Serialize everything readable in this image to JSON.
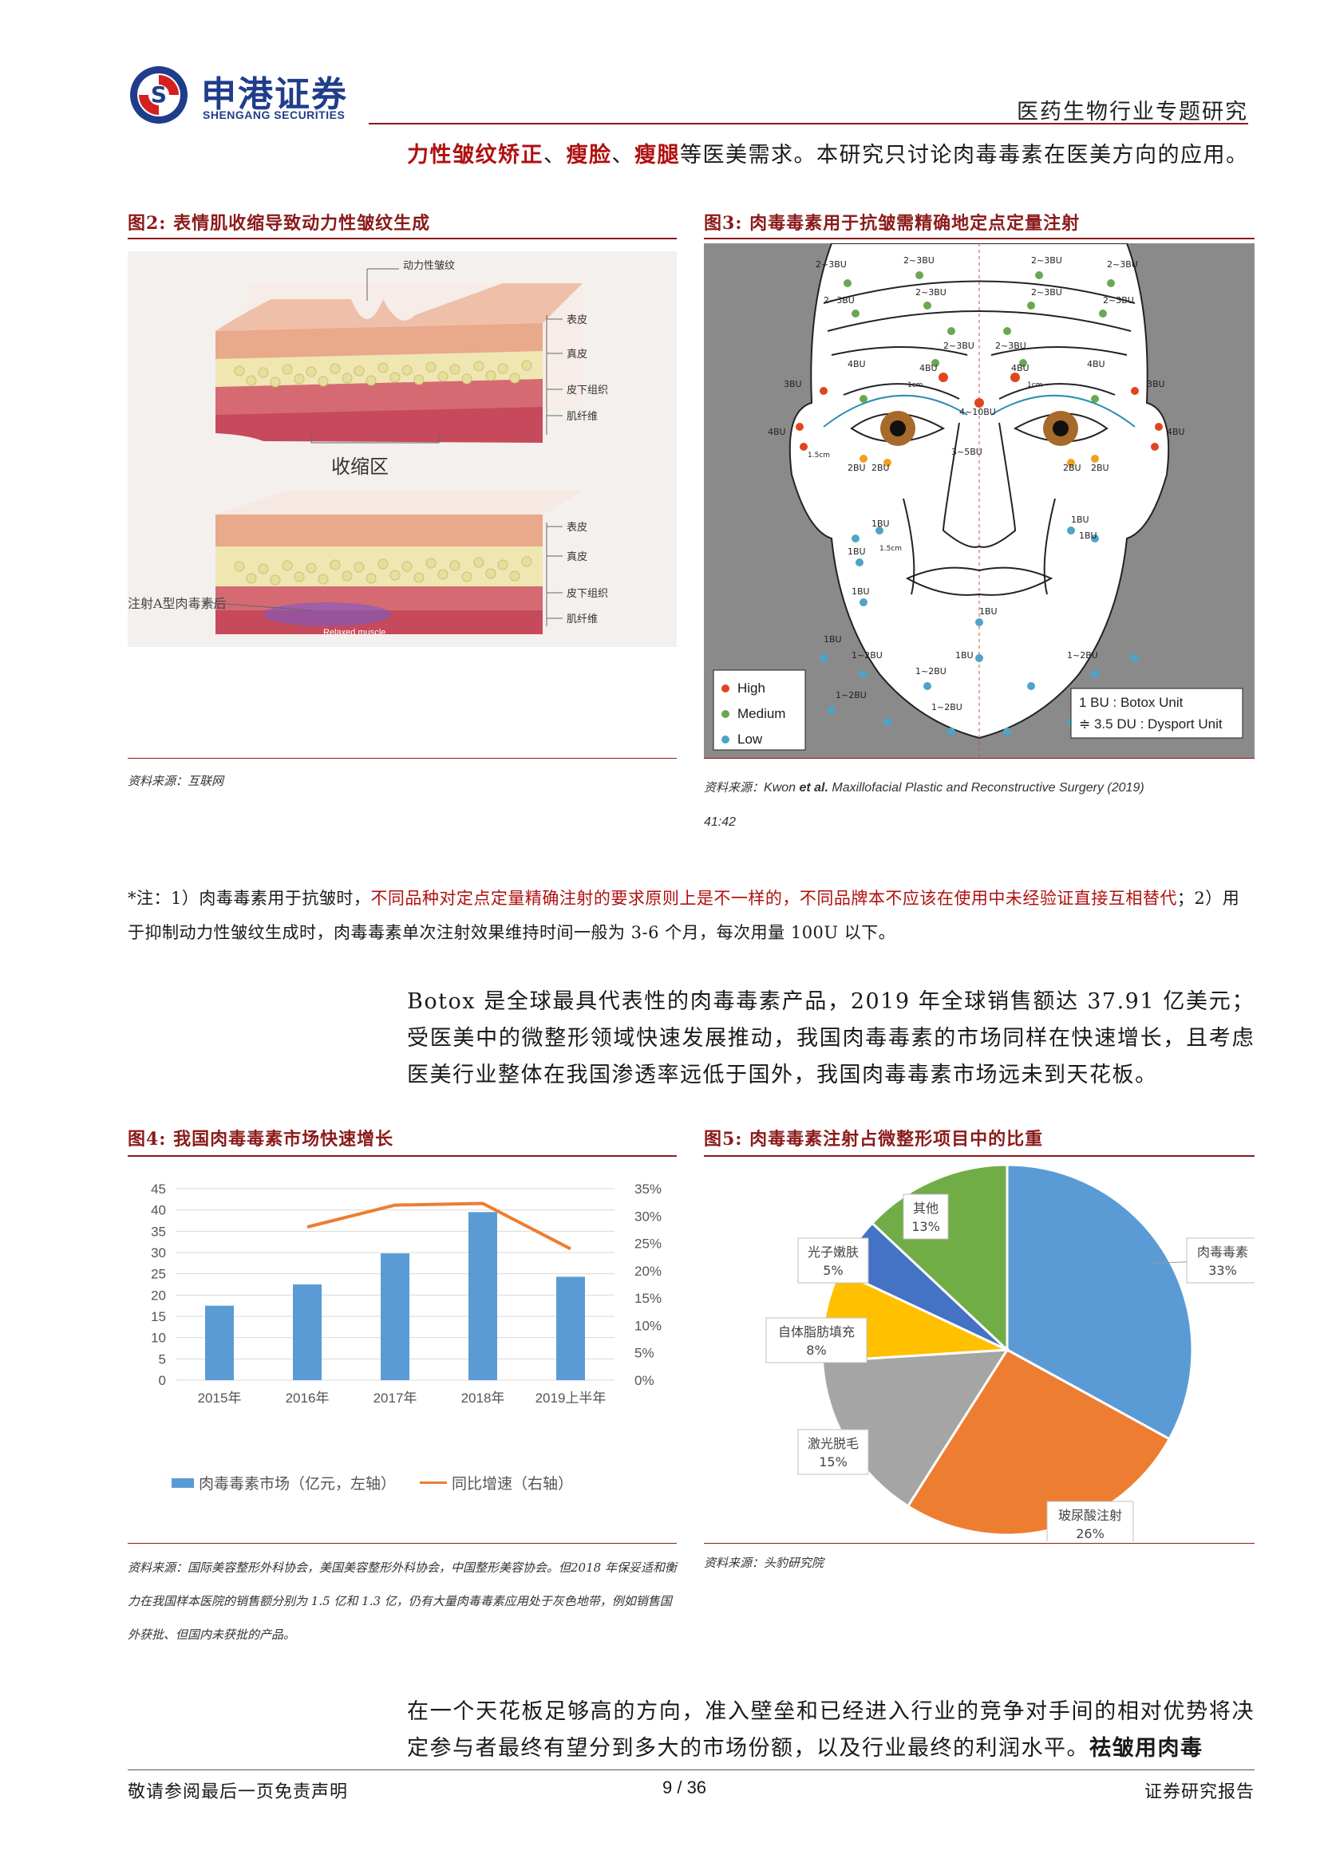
{
  "header": {
    "logo_cn": "申港证券",
    "logo_en": "SHENGANG SECURITIES",
    "right_title": "医药生物行业专题研究"
  },
  "intro_line": {
    "red_1": "力性皱纹矫正",
    "sep_1": "、",
    "red_2": "瘦脸",
    "sep_2": "、",
    "red_3": "瘦腿",
    "rest": "等医美需求。本研究只讨论肉毒毒素在医美方向的应用。"
  },
  "fig2": {
    "title_prefix": "图2:",
    "title": "表情肌收缩导致动力性皱纹生成",
    "label_top": "动力性皱纹",
    "layers": [
      "表皮",
      "真皮",
      "皮下组织",
      "肌纤维"
    ],
    "zone_label": "收缩区",
    "injection_label": "注射A型肉毒素后",
    "relaxed_label": "Relaxed muscle",
    "source": "资料来源：互联网"
  },
  "fig3": {
    "title_prefix": "图3:",
    "title": "肉毒毒素用于抗皱需精确地定点定量注射",
    "dose_labels": [
      "2~3BU",
      "2~3BU",
      "2~3BU",
      "2~3BU",
      "2~3BU",
      "2~3BU",
      "2~3BU",
      "2~3BU",
      "4BU",
      "4BU",
      "4BU",
      "4BU",
      "3BU",
      "3BU",
      "4BU",
      "4BU",
      "4~10BU",
      "3~5BU",
      "2BU",
      "2BU",
      "2BU",
      "2BU",
      "1BU",
      "1BU",
      "1BU",
      "1BU",
      "1BU",
      "1BU",
      "1~2BU",
      "1~2BU",
      "1~2BU",
      "1~2BU",
      "1~2BU",
      "1~2BU"
    ],
    "measure_labels": [
      "1cm",
      "1cm",
      "1.5cm",
      "1.5cm"
    ],
    "legend": [
      {
        "label": "High",
        "color": "#e0451f"
      },
      {
        "label": "Medium",
        "color": "#6aa84f"
      },
      {
        "label": "Low",
        "color": "#4fa3c7"
      }
    ],
    "unit_box": [
      "1 BU : Botox Unit",
      "≑ 3.5 DU : Dysport Unit"
    ],
    "source_prefix": "资料来源：",
    "source_author": "Kwon ",
    "source_etal": "et al.",
    "source_journal": " Maxillofacial Plastic and Reconstructive Surgery (2019)",
    "source_pages": "41:42"
  },
  "note": {
    "part1": "*注：1）肉毒毒素用于抗皱时，",
    "red": "不同品种对定点定量精确注射的要求原则上是不一样的，不同品牌本不应该在使用中未经验证直接互相替代",
    "part2": "；2）用于抑制动力性皱纹生成时，肉毒毒素单次注射效果维持时间一般为 3-6 个月，每次用量 100U 以下。"
  },
  "para1": "Botox 是全球最具代表性的肉毒毒素产品，2019 年全球销售额达 37.91 亿美元；受医美中的微整形领域快速发展推动，我国肉毒毒素的市场同样在快速增长，且考虑医美行业整体在我国渗透率远低于国外，我国肉毒毒素市场远未到天花板。",
  "fig4": {
    "title_prefix": "图4:",
    "title": "我国肉毒毒素市场快速增长",
    "source": "资料来源：国际美容整形外科协会，美国美容整形外科协会，中国整形美容协会。但2018 年保妥适和衡力在我国样本医院的销售额分别为 1.5 亿和 1.3 亿，仍有大量肉毒毒素应用处于灰色地带，例如销售国外获批、但国内未获批的产品。",
    "legend_bar": "肉毒毒素市场（亿元，左轴）",
    "legend_line": "同比增速（右轴）"
  },
  "fig5": {
    "title_prefix": "图5:",
    "title": "肉毒毒素注射占微整形项目中的比重",
    "source": "资料来源：头豹研究院"
  },
  "para2": {
    "text": "在一个天花板足够高的方向，准入壁垒和已经进入行业的竞争对手间的相对优势将决定参与者最终有望分到多大的市场份额，以及行业最终的利润水平。",
    "bold": "祛皱用肉毒"
  },
  "footer": {
    "left": "敬请参阅最后一页免责声明",
    "center": "9 / 36",
    "right": "证券研究报告"
  },
  "chart_data": [
    {
      "type": "bar",
      "categories": [
        "2015年",
        "2016年",
        "2017年",
        "2018年",
        "2019上半年"
      ],
      "series": [
        {
          "name": "肉毒毒素市场（亿元，左轴）",
          "type": "bar",
          "axis": "left",
          "values": [
            17.5,
            22.5,
            29.8,
            39.5,
            24.3
          ],
          "color": "#5b9bd5"
        },
        {
          "name": "同比增速（右轴）",
          "type": "line",
          "axis": "right",
          "values": [
            null,
            28.0,
            32.0,
            32.3,
            24.0
          ],
          "color": "#ed7d31"
        }
      ],
      "left_ticks": [
        "0",
        "5",
        "10",
        "15",
        "20",
        "25",
        "30",
        "35",
        "40",
        "45"
      ],
      "right_ticks": [
        "0%",
        "5%",
        "10%",
        "15%",
        "20%",
        "25%",
        "30%",
        "35%"
      ],
      "ylim_left": [
        0,
        45
      ],
      "ylim_right": [
        0,
        35
      ],
      "grid": true,
      "legend": "bottom"
    },
    {
      "type": "pie",
      "slices": [
        {
          "label": "肉毒毒素",
          "pct": "33%",
          "value": 33,
          "color": "#5b9bd5"
        },
        {
          "label": "玻尿酸注射",
          "pct": "26%",
          "value": 26,
          "color": "#ed7d31"
        },
        {
          "label": "激光脱毛",
          "pct": "15%",
          "value": 15,
          "color": "#a5a5a5"
        },
        {
          "label": "自体脂肪填充",
          "pct": "8%",
          "value": 8,
          "color": "#ffc000"
        },
        {
          "label": "光子嫩肤",
          "pct": "5%",
          "value": 5,
          "color": "#4472c4"
        },
        {
          "label": "其他",
          "pct": "13%",
          "value": 13,
          "color": "#70ad47"
        }
      ]
    }
  ]
}
